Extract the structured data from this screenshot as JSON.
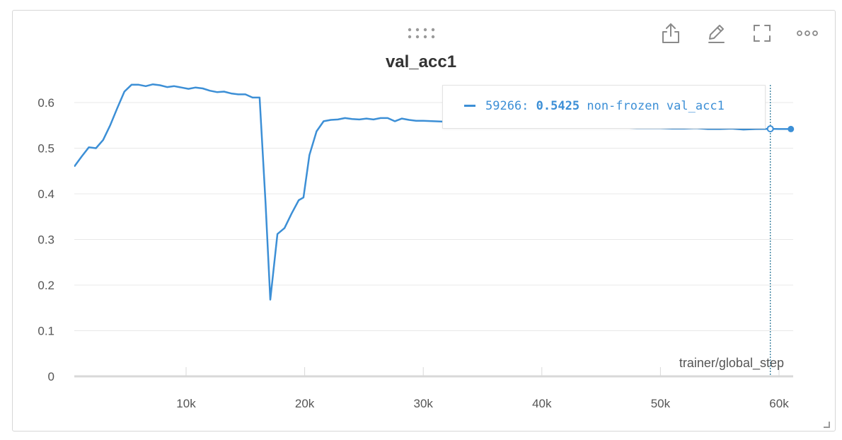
{
  "panel": {
    "title": "val_acc1",
    "toolbar": [
      {
        "name": "share-icon"
      },
      {
        "name": "edit-icon"
      },
      {
        "name": "fullscreen-icon"
      },
      {
        "name": "more-options-icon"
      }
    ]
  },
  "tooltip": {
    "step": "59266:",
    "value": "0.5425",
    "run_name": "non-frozen val_acc1",
    "hover_x": 59266
  },
  "chart_data": {
    "type": "line",
    "title": "val_acc1",
    "xlabel": "trainer/global_step",
    "ylabel": "",
    "xlim": [
      0,
      61000
    ],
    "ylim": [
      0,
      0.66
    ],
    "x_ticks": [
      10000,
      20000,
      30000,
      40000,
      50000,
      60000
    ],
    "x_tick_labels": [
      "10k",
      "20k",
      "30k",
      "40k",
      "50k",
      "60k"
    ],
    "y_ticks": [
      0,
      0.1,
      0.2,
      0.3,
      0.4,
      0.5,
      0.6
    ],
    "y_tick_labels": [
      "0",
      "0.1",
      "0.2",
      "0.3",
      "0.4",
      "0.5",
      "0.6"
    ],
    "grid": true,
    "color": "#3c8fd6",
    "series": [
      {
        "name": "non-frozen val_acc1",
        "x": [
          0,
          600,
          1200,
          1800,
          2400,
          3000,
          3600,
          4200,
          4800,
          5400,
          6000,
          6600,
          7200,
          7800,
          8400,
          9000,
          9600,
          10200,
          10800,
          11400,
          12000,
          12600,
          13200,
          13800,
          14400,
          15000,
          15600,
          16200,
          16700,
          17100,
          17700,
          18300,
          18900,
          19500,
          19900,
          20400,
          21000,
          21600,
          22200,
          22800,
          23400,
          24000,
          24600,
          25200,
          25800,
          26400,
          27000,
          27600,
          28200,
          28800,
          29400,
          30000,
          32000,
          34000,
          36000,
          38000,
          40000,
          42000,
          44000,
          45000,
          46000,
          47000,
          48000,
          49000,
          50000,
          51000,
          52000,
          53000,
          54000,
          55000,
          56000,
          57000,
          58000,
          59266,
          60000,
          61000
        ],
        "y": [
          0.461,
          0.461,
          0.482,
          0.502,
          0.5,
          0.518,
          0.55,
          0.588,
          0.624,
          0.639,
          0.639,
          0.636,
          0.64,
          0.638,
          0.634,
          0.636,
          0.633,
          0.63,
          0.633,
          0.631,
          0.626,
          0.623,
          0.624,
          0.62,
          0.618,
          0.618,
          0.611,
          0.611,
          0.38,
          0.168,
          0.312,
          0.325,
          0.357,
          0.386,
          0.392,
          0.485,
          0.537,
          0.559,
          0.562,
          0.563,
          0.566,
          0.564,
          0.563,
          0.565,
          0.563,
          0.566,
          0.566,
          0.559,
          0.565,
          0.562,
          0.56,
          0.56,
          0.558,
          0.556,
          0.554,
          0.552,
          0.55,
          0.549,
          0.548,
          0.546,
          0.545,
          0.545,
          0.544,
          0.544,
          0.544,
          0.543,
          0.543,
          0.544,
          0.542,
          0.542,
          0.543,
          0.541,
          0.542,
          0.5425,
          0.542,
          0.542
        ]
      }
    ]
  }
}
